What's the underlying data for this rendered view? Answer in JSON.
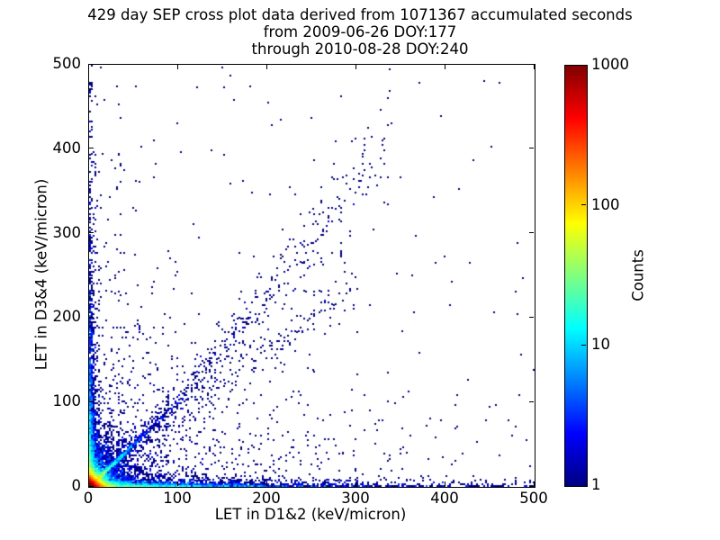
{
  "chart_data": {
    "type": "scatter",
    "title_lines": [
      "429 day SEP cross plot data derived from 1071367 accumulated seconds",
      "from 2009-06-26 DOY:177",
      "through 2010-08-28 DOY:240"
    ],
    "xlabel": "LET in D1&2 (keV/micron)",
    "ylabel": "LET in D3&4 (keV/micron)",
    "xlim": [
      0,
      500
    ],
    "ylim": [
      0,
      500
    ],
    "xticks": [
      0,
      100,
      200,
      300,
      400,
      500
    ],
    "yticks": [
      0,
      100,
      200,
      300,
      400,
      500
    ],
    "grid": false,
    "point_bin_size_units": 2,
    "single_count_color": "#000080",
    "colorbar": {
      "label": "Counts",
      "scale": "log",
      "min": 1,
      "max": 1000,
      "ticks": [
        1,
        10,
        100,
        1000
      ],
      "tick_labels": [
        "1",
        "10",
        "100",
        "1000"
      ],
      "colormap": "jet"
    },
    "density_model": {
      "seed": 42,
      "bins_per_axis": 250,
      "log_color_max": 3,
      "clusters": [
        {
          "name": "origin-hot-core",
          "type": "indep",
          "n": 15000,
          "x": {
            "dist": "exp",
            "mean": 5
          },
          "y": {
            "dist": "exp",
            "mean": 5
          }
        },
        {
          "name": "origin-halo",
          "type": "indep",
          "n": 2600,
          "x": {
            "dist": "exp",
            "mean": 18
          },
          "y": {
            "dist": "exp",
            "mean": 18
          }
        },
        {
          "name": "bottom-edge-band",
          "type": "indep",
          "n": 2600,
          "x": {
            "dist": "exp",
            "mean": 90
          },
          "y": {
            "dist": "exp",
            "mean": 2.5
          }
        },
        {
          "name": "bottom-edge-far",
          "type": "indep",
          "n": 260,
          "x": {
            "dist": "uniform",
            "min": 0,
            "max": 500
          },
          "y": {
            "dist": "exp",
            "mean": 2.5
          }
        },
        {
          "name": "left-edge-band",
          "type": "indep",
          "n": 1800,
          "x": {
            "dist": "exp",
            "mean": 2.5
          },
          "y": {
            "dist": "exp",
            "mean": 80
          }
        },
        {
          "name": "left-edge-far",
          "type": "indep",
          "n": 90,
          "x": {
            "dist": "exp",
            "mean": 2.5
          },
          "y": {
            "dist": "uniform",
            "min": 0,
            "max": 495
          }
        },
        {
          "name": "diagonal-bright-streak",
          "type": "diag",
          "n": 1300,
          "t": {
            "dist": "exp",
            "mean": 22
          },
          "a": 1.0,
          "b": 0,
          "s0": 1.2,
          "s1": 0.02
        },
        {
          "name": "diagonal-track-band",
          "type": "diag",
          "n": 620,
          "t": {
            "dist": "pow",
            "max": 340,
            "k": 1.6
          },
          "a": 0.95,
          "b": 0.00085,
          "s0": 3,
          "s1": 0.09
        },
        {
          "name": "diagonal-lower-branch",
          "type": "diag",
          "n": 190,
          "t": {
            "dist": "uniform",
            "min": 25,
            "max": 300
          },
          "a": 0.8,
          "b": 0,
          "s0": 10,
          "s1": 0.02
        },
        {
          "name": "lower-triangle-fan",
          "type": "indep",
          "n": 700,
          "x": {
            "dist": "exp",
            "mean": 140
          },
          "y": {
            "dist": "exp",
            "mean": 55
          }
        },
        {
          "name": "upper-left-fan",
          "type": "indep",
          "n": 350,
          "x": {
            "dist": "exp",
            "mean": 45
          },
          "y": {
            "dist": "exp",
            "mean": 150
          }
        },
        {
          "name": "sparse-background",
          "type": "indep",
          "n": 130,
          "x": {
            "dist": "uniform",
            "min": 0,
            "max": 500
          },
          "y": {
            "dist": "uniform",
            "min": 0,
            "max": 500
          }
        }
      ]
    }
  }
}
